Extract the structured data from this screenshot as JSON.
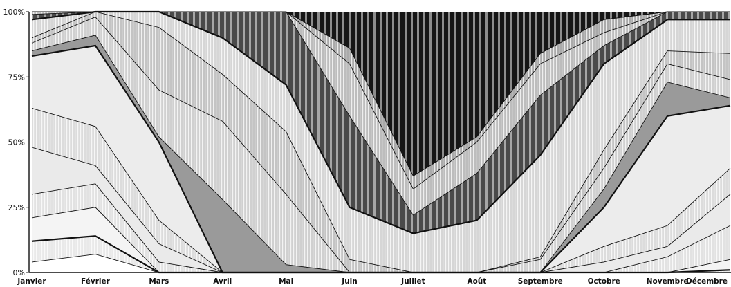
{
  "chart_data": {
    "type": "area",
    "stacked": true,
    "percent": true,
    "categories": [
      "Janvier",
      "Février",
      "Mars",
      "Avril",
      "Mai",
      "Juin",
      "Juillet",
      "Août",
      "Septembre",
      "Octobre",
      "Novembre",
      "Décembre"
    ],
    "yticks": [
      "0%",
      "25%",
      "50%",
      "75%",
      "100%"
    ],
    "ylim": [
      0,
      100
    ],
    "boundaries": [
      [
        4,
        7,
        0,
        0,
        0,
        0,
        0,
        0,
        0,
        0,
        0,
        0
      ],
      [
        12,
        14,
        0,
        0,
        0,
        0,
        0,
        0,
        0,
        0,
        0,
        1
      ],
      [
        21,
        25,
        0,
        0,
        0,
        0,
        0,
        0,
        0,
        0,
        0,
        5
      ],
      [
        30,
        34,
        4,
        0,
        0,
        0,
        0,
        0,
        0,
        0,
        6,
        18
      ],
      [
        48,
        41,
        11,
        0,
        0,
        0,
        0,
        0,
        0,
        4,
        10,
        30
      ],
      [
        63,
        56,
        20,
        0,
        0,
        0,
        0,
        0,
        0,
        10,
        18,
        40
      ],
      [
        83,
        87,
        50,
        0,
        0,
        0,
        0,
        0,
        0,
        25,
        60,
        64
      ],
      [
        85,
        91,
        52,
        28,
        3,
        0,
        0,
        0,
        0,
        32,
        73,
        67
      ],
      [
        88,
        98,
        70,
        58,
        30,
        0,
        0,
        0,
        5,
        40,
        80,
        74
      ],
      [
        90,
        100,
        94,
        76,
        54,
        5,
        0,
        0,
        6,
        47,
        85,
        84
      ],
      [
        97,
        100,
        100,
        90,
        72,
        25,
        15,
        20,
        45,
        80,
        97,
        97
      ],
      [
        99,
        100,
        100,
        100,
        100,
        60,
        22,
        38,
        68,
        87,
        100,
        100
      ],
      [
        100,
        100,
        100,
        100,
        100,
        80,
        32,
        50,
        80,
        92,
        100,
        100
      ],
      [
        100,
        100,
        100,
        100,
        100,
        86,
        37,
        52,
        84,
        97,
        100,
        100
      ],
      [
        100,
        100,
        100,
        100,
        100,
        100,
        100,
        100,
        100,
        100,
        100,
        100
      ]
    ],
    "colors": [
      "#ffffff",
      "#e9e9e9",
      "#f4f4f4",
      "#e2e2e2",
      "#eaeaea",
      "#dcdcdc",
      "#ececec",
      "#9a9a9a",
      "#d0d0d0",
      "#c4c4c4",
      "#d6d6d6",
      "#4a4a4a",
      "#bdbdbd",
      "#aaaaaa",
      "#161616"
    ],
    "stripes": [
      false,
      true,
      false,
      true,
      false,
      true,
      false,
      false,
      true,
      true,
      true,
      false,
      true,
      true,
      false
    ],
    "grid": false,
    "legend": "none"
  }
}
